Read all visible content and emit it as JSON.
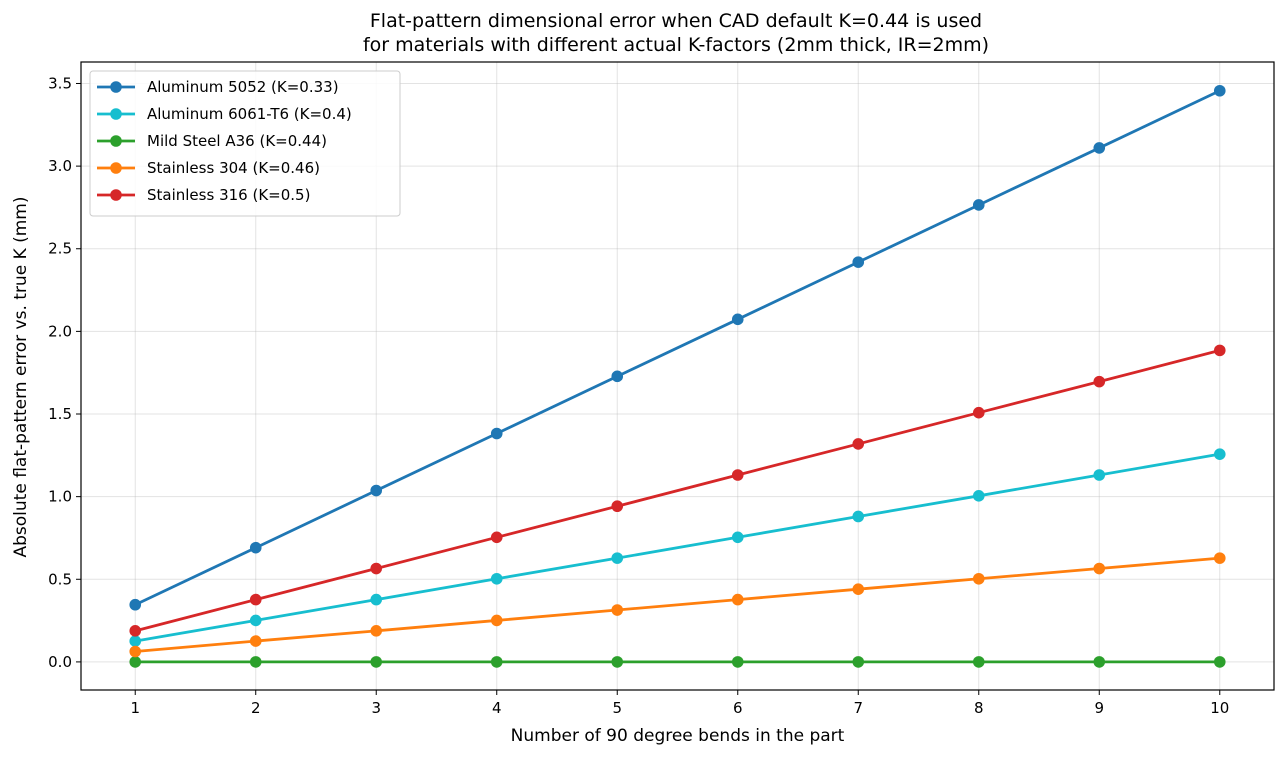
{
  "chart_data": {
    "type": "line",
    "title_lines": [
      "Flat-pattern dimensional error when CAD default K=0.44 is used",
      "for materials with different actual K-factors (2mm thick, IR=2mm)"
    ],
    "xlabel": "Number of 90 degree bends in the part",
    "ylabel": "Absolute flat-pattern error vs. true K (mm)",
    "x": [
      1,
      2,
      3,
      4,
      5,
      6,
      7,
      8,
      9,
      10
    ],
    "xlim": [
      0.55,
      10.45
    ],
    "ylim": [
      -0.17,
      3.63
    ],
    "xticks": [
      1,
      2,
      3,
      4,
      5,
      6,
      7,
      8,
      9,
      10
    ],
    "yticks": [
      0.0,
      0.5,
      1.0,
      1.5,
      2.0,
      2.5,
      3.0,
      3.5
    ],
    "ytick_labels": [
      "0.0",
      "0.5",
      "1.0",
      "1.5",
      "2.0",
      "2.5",
      "3.0",
      "3.5"
    ],
    "grid": true,
    "legend_position": "top-left",
    "series": [
      {
        "name": "Aluminum 5052 (K=0.33)",
        "color": "#1f77b4",
        "values": [
          0.346,
          0.691,
          1.037,
          1.382,
          1.728,
          2.073,
          2.419,
          2.765,
          3.11,
          3.456
        ]
      },
      {
        "name": "Aluminum 6061-T6 (K=0.4)",
        "color": "#17becf",
        "values": [
          0.126,
          0.251,
          0.377,
          0.503,
          0.628,
          0.754,
          0.88,
          1.005,
          1.131,
          1.257
        ]
      },
      {
        "name": "Mild Steel A36 (K=0.44)",
        "color": "#2ca02c",
        "values": [
          0,
          0,
          0,
          0,
          0,
          0,
          0,
          0,
          0,
          0
        ]
      },
      {
        "name": "Stainless 304 (K=0.46)",
        "color": "#ff7f0e",
        "values": [
          0.063,
          0.126,
          0.188,
          0.251,
          0.314,
          0.377,
          0.44,
          0.503,
          0.565,
          0.628
        ]
      },
      {
        "name": "Stainless 316 (K=0.5)",
        "color": "#d62728",
        "values": [
          0.188,
          0.377,
          0.565,
          0.754,
          0.942,
          1.131,
          1.319,
          1.508,
          1.696,
          1.885
        ]
      }
    ]
  }
}
